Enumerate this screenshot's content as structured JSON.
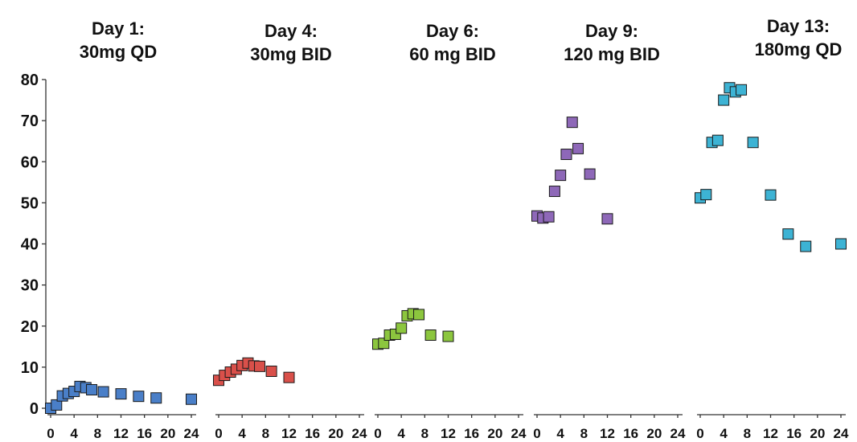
{
  "chart_data": {
    "type": "scatter",
    "ylim": [
      0,
      80
    ],
    "yticks": [
      "0",
      "10",
      "20",
      "30",
      "40",
      "50",
      "60",
      "70",
      "80"
    ],
    "xticks": [
      "0",
      "4",
      "8",
      "12",
      "16",
      "20",
      "24"
    ],
    "xlim": [
      0,
      24
    ],
    "grid": false,
    "panels": [
      {
        "title_line1": "Day 1:",
        "title_line2": "30mg QD",
        "color": "#4a7fc8",
        "points": [
          [
            0,
            0
          ],
          [
            1,
            0.8
          ],
          [
            2,
            3
          ],
          [
            3,
            3.6
          ],
          [
            4,
            4.1
          ],
          [
            5,
            5.3
          ],
          [
            6,
            5
          ],
          [
            7,
            4.5
          ],
          [
            9,
            4
          ],
          [
            12,
            3.5
          ],
          [
            15,
            2.9
          ],
          [
            18,
            2.5
          ],
          [
            24,
            2.2
          ]
        ]
      },
      {
        "title_line1": "Day 4:",
        "title_line2": "30mg BID",
        "color": "#d9504a",
        "points": [
          [
            0,
            6.8
          ],
          [
            1,
            8
          ],
          [
            2,
            8.8
          ],
          [
            3,
            9.5
          ],
          [
            4,
            10.4
          ],
          [
            5,
            11
          ],
          [
            6,
            10.3
          ],
          [
            7,
            10.2
          ],
          [
            9,
            9
          ],
          [
            12,
            7.5
          ]
        ]
      },
      {
        "title_line1": "Day 6:",
        "title_line2": "60 mg BID",
        "color": "#8cc63e",
        "points": [
          [
            0,
            15.6
          ],
          [
            1,
            15.8
          ],
          [
            2,
            17.8
          ],
          [
            3,
            18
          ],
          [
            4,
            19.5
          ],
          [
            5,
            22.5
          ],
          [
            6,
            23
          ],
          [
            7,
            22.8
          ],
          [
            9,
            17.8
          ],
          [
            12,
            17.5
          ]
        ]
      },
      {
        "title_line1": "Day 9:",
        "title_line2": "120 mg BID",
        "color": "#8e68b8",
        "points": [
          [
            0,
            46.8
          ],
          [
            1,
            46.3
          ],
          [
            2,
            46.6
          ],
          [
            3,
            52.8
          ],
          [
            4,
            56.7
          ],
          [
            5,
            61.8
          ],
          [
            6,
            69.6
          ],
          [
            7,
            63.2
          ],
          [
            9,
            57
          ],
          [
            12,
            46.1
          ]
        ]
      },
      {
        "title_line1": "Day 13:",
        "title_line2": "180mg QD",
        "color": "#3db3d4",
        "points": [
          [
            0,
            51.2
          ],
          [
            1,
            52
          ],
          [
            2,
            64.7
          ],
          [
            3,
            65.2
          ],
          [
            4,
            75
          ],
          [
            5,
            78
          ],
          [
            6,
            77
          ],
          [
            7,
            77.5
          ],
          [
            9,
            64.7
          ],
          [
            12,
            51.9
          ],
          [
            15,
            42.4
          ],
          [
            18,
            39.4
          ],
          [
            24,
            40
          ]
        ]
      }
    ]
  }
}
